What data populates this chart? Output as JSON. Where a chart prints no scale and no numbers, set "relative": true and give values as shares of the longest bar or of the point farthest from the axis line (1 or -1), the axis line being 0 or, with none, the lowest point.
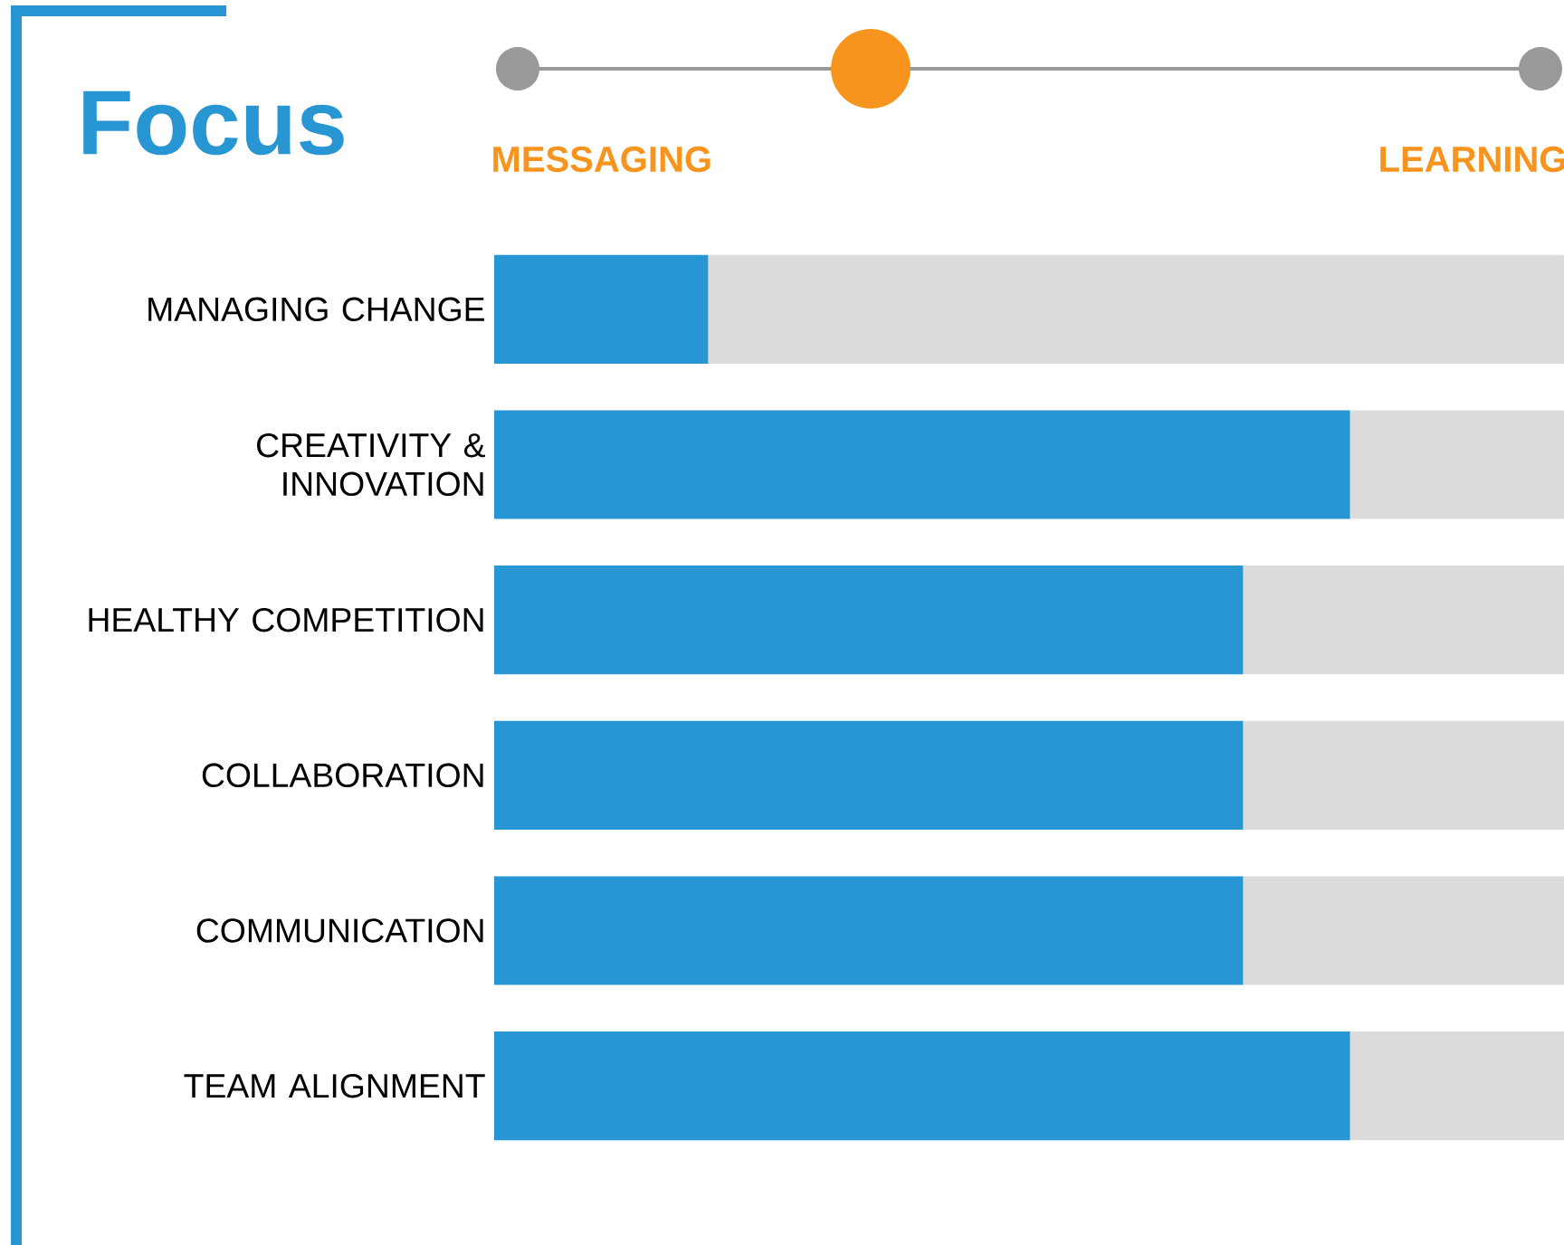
{
  "chart_data": {
    "type": "bar",
    "orientation": "horizontal",
    "stacked": true,
    "relative": true,
    "title": "Focus",
    "annotations": [
      "MESSAGING",
      "LEARNING"
    ],
    "categories": [
      "MANAGING CHANGE",
      "CREATIVITY & INNOVATION",
      "HEALTHY COMPETITION",
      "COLLABORATION",
      "COMMUNICATION",
      "TEAM ALIGNMENT"
    ],
    "series": [
      {
        "color": "#2896d3",
        "values": [
          0.2,
          0.8,
          0.7,
          0.7,
          0.7,
          0.8
        ]
      },
      {
        "color": "#dcdcdc",
        "values": [
          0.8,
          0.2,
          0.3,
          0.3,
          0.3,
          0.2
        ]
      }
    ]
  }
}
